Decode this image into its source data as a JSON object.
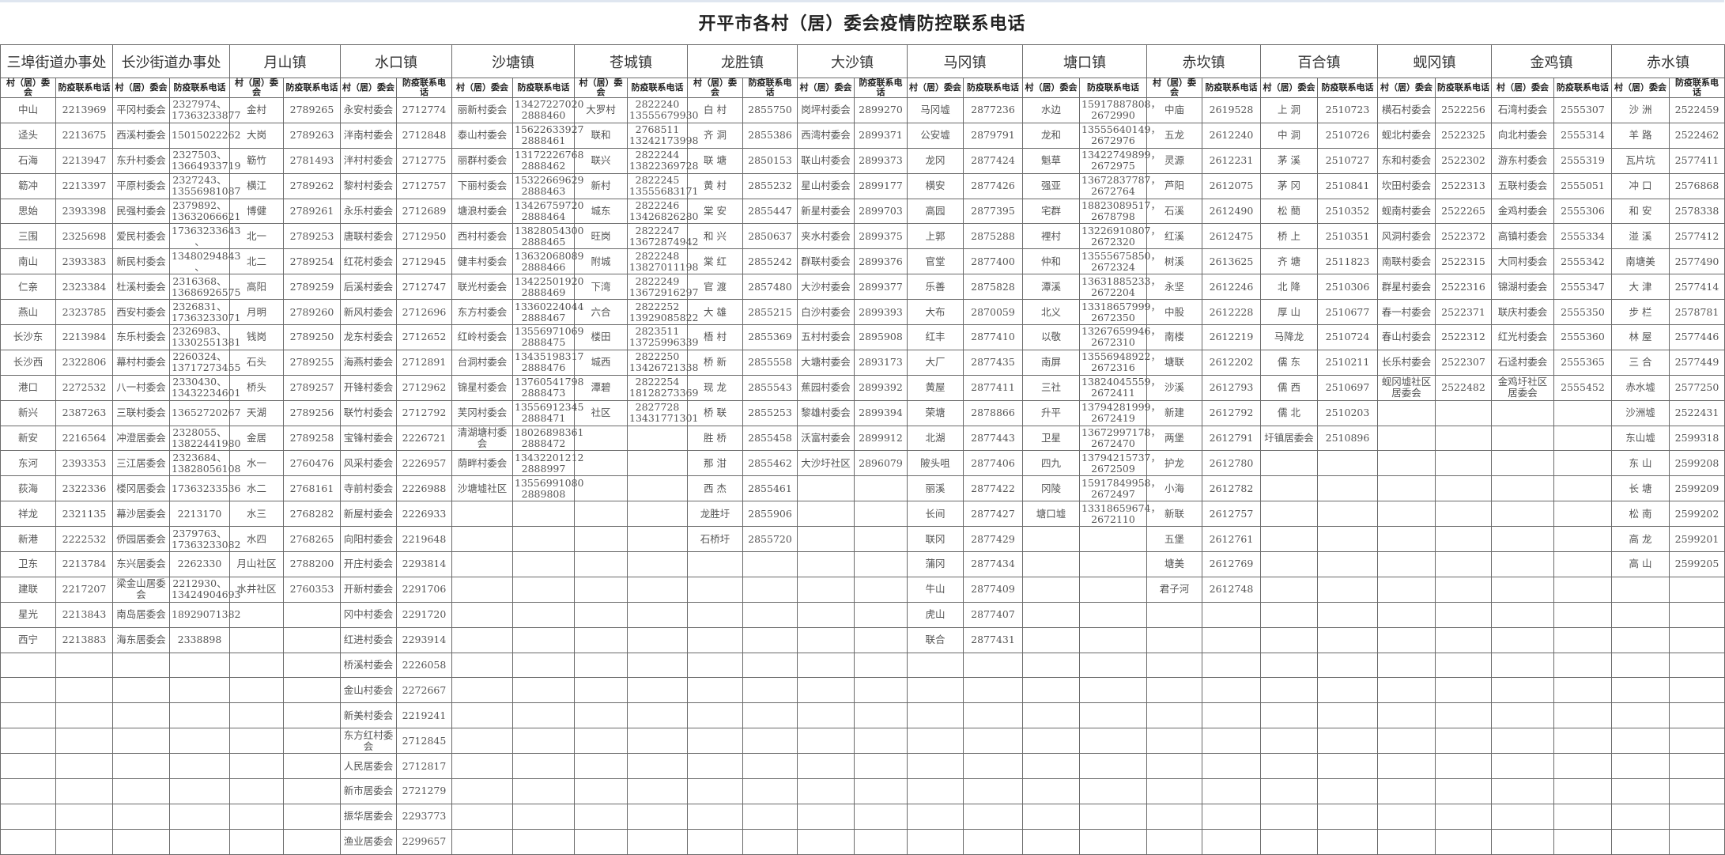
{
  "title": "开平市各村（居）委会疫情防控联系电话",
  "sub_headers": {
    "village": "村（居）委会",
    "phone": "防疫联系电话"
  },
  "towns": [
    {
      "name": "三埠街道办事处",
      "rows": [
        [
          "中山",
          "2213969"
        ],
        [
          "迳头",
          "2213675"
        ],
        [
          "石海",
          "2213947"
        ],
        [
          "簕冲",
          "2213397"
        ],
        [
          "思始",
          "2393398"
        ],
        [
          "三围",
          "2325698"
        ],
        [
          "南山",
          "2393383"
        ],
        [
          "仁亲",
          "2323384"
        ],
        [
          "燕山",
          "2323785"
        ],
        [
          "长沙东",
          "2213984"
        ],
        [
          "长沙西",
          "2322806"
        ],
        [
          "港口",
          "2272532"
        ],
        [
          "新兴",
          "2387263"
        ],
        [
          "新安",
          "2216564"
        ],
        [
          "东河",
          "2393353"
        ],
        [
          "荻海",
          "2322336"
        ],
        [
          "祥龙",
          "2321135"
        ],
        [
          "新港",
          "2222532"
        ],
        [
          "卫东",
          "2213784"
        ],
        [
          "建联",
          "2217207"
        ],
        [
          "星光",
          "2213843"
        ],
        [
          "西宁",
          "2213883"
        ]
      ]
    },
    {
      "name": "长沙街道办事处",
      "rows": [
        [
          "平冈村委会",
          "2327974、\n17363233877"
        ],
        [
          "西溪村委会",
          "15015022262"
        ],
        [
          "东升村委会",
          "2327503、\n13664933719"
        ],
        [
          "平原村委会",
          "2327243、\n13556981087"
        ],
        [
          "民强村委会",
          "2379892、\n13632066621"
        ],
        [
          "爱民村委会",
          "17363233643\n、"
        ],
        [
          "新民村委会",
          "13480294843\n、"
        ],
        [
          "杜溪村委会",
          "2316368、\n13686926575"
        ],
        [
          "西安村委会",
          "2326831、\n17363233071"
        ],
        [
          "东乐村委会",
          "2326983、\n13302551381"
        ],
        [
          "幕村村委会",
          "2260324、\n13717273455"
        ],
        [
          "八一村委会",
          "2330430、\n13432234601"
        ],
        [
          "三联村委会",
          "13652720267"
        ],
        [
          "冲澄居委会",
          "2328055、\n13822441980"
        ],
        [
          "三江居委会",
          "2323684、\n13828056108"
        ],
        [
          "楼冈居委会",
          "17363233536"
        ],
        [
          "幕沙居委会",
          "2213170"
        ],
        [
          "侨园居委会",
          "2379763、\n17363233082"
        ],
        [
          "东兴居委会",
          "2262330"
        ],
        [
          "梁金山居委会",
          "2212930、\n13424904693"
        ],
        [
          "南岛居委会",
          "18929071382"
        ],
        [
          "海东居委会",
          "2338898"
        ]
      ]
    },
    {
      "name": "月山镇",
      "rows": [
        [
          "金村",
          "2789265"
        ],
        [
          "大岗",
          "2789263"
        ],
        [
          "簕竹",
          "2781493"
        ],
        [
          "横江",
          "2789262"
        ],
        [
          "博健",
          "2789261"
        ],
        [
          "北一",
          "2789253"
        ],
        [
          "北二",
          "2789254"
        ],
        [
          "高阳",
          "2789259"
        ],
        [
          "月明",
          "2789260"
        ],
        [
          "钱岗",
          "2789250"
        ],
        [
          "石头",
          "2789255"
        ],
        [
          "桥头",
          "2789257"
        ],
        [
          "天湖",
          "2789256"
        ],
        [
          "金居",
          "2789258"
        ],
        [
          "水一",
          "2760476"
        ],
        [
          "水二",
          "2768161"
        ],
        [
          "水三",
          "2768282"
        ],
        [
          "水四",
          "2768265"
        ],
        [
          "月山社区",
          "2788200"
        ],
        [
          "水井社区",
          "2760353"
        ]
      ]
    },
    {
      "name": "水口镇",
      "rows": [
        [
          "永安村委会",
          "2712774"
        ],
        [
          "泮南村委会",
          "2712848"
        ],
        [
          "泮村村委会",
          "2712775"
        ],
        [
          "黎村村委会",
          "2712757"
        ],
        [
          "永乐村委会",
          "2712689"
        ],
        [
          "唐联村委会",
          "2712950"
        ],
        [
          "红花村委会",
          "2712945"
        ],
        [
          "后溪村委会",
          "2712747"
        ],
        [
          "新风村委会",
          "2712696"
        ],
        [
          "龙东村委会",
          "2712652"
        ],
        [
          "海燕村委会",
          "2712891"
        ],
        [
          "开锋村委会",
          "2712962"
        ],
        [
          "联竹村委会",
          "2712792"
        ],
        [
          "宝锋村委会",
          "2226721"
        ],
        [
          "风采村委会",
          "2226957"
        ],
        [
          "寺前村委会",
          "2226988"
        ],
        [
          "新屋村委会",
          "2226933"
        ],
        [
          "向阳村委会",
          "2219648"
        ],
        [
          "开庄村委会",
          "2293814"
        ],
        [
          "开新村委会",
          "2291706"
        ],
        [
          "冈中村委会",
          "2291720"
        ],
        [
          "红进村委会",
          "2293914"
        ],
        [
          "桥溪村委会",
          "2226058"
        ],
        [
          "金山村委会",
          "2272667"
        ],
        [
          "新美村委会",
          "2219241"
        ],
        [
          "东方红村委会",
          "2712845"
        ],
        [
          "人民居委会",
          "2712817"
        ],
        [
          "新市居委会",
          "2721279"
        ],
        [
          "振华居委会",
          "2293773"
        ],
        [
          "渔业居委会",
          "2299657"
        ]
      ]
    },
    {
      "name": "沙塘镇",
      "rows": [
        [
          "丽新村委会",
          "13427227020\n2888460"
        ],
        [
          "泰山村委会",
          "15622633927\n2888461"
        ],
        [
          "丽群村委会",
          "13172226768\n2888462"
        ],
        [
          "下丽村委会",
          "15322669629\n2888463"
        ],
        [
          "塘浪村委会",
          "13426759720\n2888464"
        ],
        [
          "西村村委会",
          "13828054300\n2888465"
        ],
        [
          "健丰村委会",
          "13632068089\n2888466"
        ],
        [
          "联光村委会",
          "13422501920\n2888469"
        ],
        [
          "东方村委会",
          "13360224044\n2888467"
        ],
        [
          "红岭村委会",
          "13556971069\n2888475"
        ],
        [
          "台洞村委会",
          "13435198317\n2888476"
        ],
        [
          "锦星村委会",
          "13760541798\n2888473"
        ],
        [
          "芙冈村委会",
          "13556912345\n2888471"
        ],
        [
          "清湖塘村委会",
          "18026898361\n2888472"
        ],
        [
          "荫畔村委会",
          "13432201212\n2888997"
        ],
        [
          "沙塘墟社区",
          "13556991080\n2889808"
        ]
      ]
    },
    {
      "name": "苍城镇",
      "rows": [
        [
          "大罗村",
          "2822240\n13555679930"
        ],
        [
          "联和",
          "2768511\n13242173998"
        ],
        [
          "联兴",
          "2822244\n13822369728"
        ],
        [
          "新村",
          "2822245\n13555683171"
        ],
        [
          "城东",
          "2822246\n13426826280"
        ],
        [
          "旺岗",
          "2822247\n13672874942"
        ],
        [
          "附城",
          "2822248\n13827011198"
        ],
        [
          "下湾",
          "2822249\n13672916297"
        ],
        [
          "六合",
          "2822252\n13929085822"
        ],
        [
          "楼田",
          "2823511\n13725996339"
        ],
        [
          "城西",
          "2822250\n13426721338"
        ],
        [
          "潭碧",
          "2822254\n18128273369"
        ],
        [
          "社区",
          "2827728\n13431771301"
        ]
      ]
    },
    {
      "name": "龙胜镇",
      "rows": [
        [
          "白 村",
          "2855750"
        ],
        [
          "齐 洞",
          "2855386"
        ],
        [
          "联 塘",
          "2850153"
        ],
        [
          "黄 村",
          "2855232"
        ],
        [
          "棠 安",
          "2855447"
        ],
        [
          "和 兴",
          "2850637"
        ],
        [
          "棠 红",
          "2855242"
        ],
        [
          "官 渡",
          "2857480"
        ],
        [
          "大 雄",
          "2855215"
        ],
        [
          "梧 村",
          "2855369"
        ],
        [
          "桥 新",
          "2855558"
        ],
        [
          "现 龙",
          "2855543"
        ],
        [
          "桥 联",
          "2855253"
        ],
        [
          "胜 桥",
          "2855458"
        ],
        [
          "那 泔",
          "2855462"
        ],
        [
          "西 杰",
          "2855461"
        ],
        [
          "龙胜圩",
          "2855906"
        ],
        [
          "石桥圩",
          "2855720"
        ]
      ]
    },
    {
      "name": "大沙镇",
      "rows": [
        [
          "岗坪村委会",
          "2899270"
        ],
        [
          "西湾村委会",
          "2899371"
        ],
        [
          "联山村委会",
          "2899373"
        ],
        [
          "星山村委会",
          "2899177"
        ],
        [
          "新星村委会",
          "2899703"
        ],
        [
          "夹水村委会",
          "2899375"
        ],
        [
          "群联村委会",
          "2899376"
        ],
        [
          "大沙村委会",
          "2899377"
        ],
        [
          "白沙村委会",
          "2899393"
        ],
        [
          "五村村委会",
          "2895908"
        ],
        [
          "大塘村委会",
          "2893173"
        ],
        [
          "蕉园村委会",
          "2899392"
        ],
        [
          "黎雄村委会",
          "2899394"
        ],
        [
          "沃富村委会",
          "2899912"
        ],
        [
          "大沙圩社区",
          "2896079"
        ]
      ]
    },
    {
      "name": "马冈镇",
      "rows": [
        [
          "马冈墟",
          "2877236"
        ],
        [
          "公安墟",
          "2879791"
        ],
        [
          "龙冈",
          "2877424"
        ],
        [
          "横安",
          "2877426"
        ],
        [
          "高园",
          "2877395"
        ],
        [
          "上郭",
          "2875288"
        ],
        [
          "官堂",
          "2877400"
        ],
        [
          "乐善",
          "2875828"
        ],
        [
          "大布",
          "2870059"
        ],
        [
          "红丰",
          "2877410"
        ],
        [
          "大厂",
          "2877435"
        ],
        [
          "黄屋",
          "2877411"
        ],
        [
          "荣塘",
          "2878866"
        ],
        [
          "北湖",
          "2877443"
        ],
        [
          "陂头咀",
          "2877406"
        ],
        [
          "丽溪",
          "2877422"
        ],
        [
          "长间",
          "2877427"
        ],
        [
          "联冈",
          "2877429"
        ],
        [
          "蒲冈",
          "2877434"
        ],
        [
          "牛山",
          "2877409"
        ],
        [
          "虎山",
          "2877407"
        ],
        [
          "联合",
          "2877431"
        ]
      ]
    },
    {
      "name": "塘口镇",
      "rows": [
        [
          "水边",
          "15917887808，\n2672990"
        ],
        [
          "龙和",
          "13555640149，\n2672976"
        ],
        [
          "魁草",
          "13422749899，\n2672975"
        ],
        [
          "强亚",
          "13672837787，\n2672764"
        ],
        [
          "宅群",
          "18823089517，\n2678798"
        ],
        [
          "裡村",
          "13226910807，\n2672320"
        ],
        [
          "仲和",
          "13555675850，\n2672324"
        ],
        [
          "潭溪",
          "13631885233，\n2672204"
        ],
        [
          "北义",
          "13318657999，\n2672350"
        ],
        [
          "以敬",
          "13267659946，\n2672310"
        ],
        [
          "南屏",
          "13556948922，\n2672316"
        ],
        [
          "三社",
          "13824045559，\n2672411"
        ],
        [
          "升平",
          "13794281999，\n2672419"
        ],
        [
          "卫星",
          "13672997178，\n2672470"
        ],
        [
          "四九",
          "13794215737，\n2672509"
        ],
        [
          "冈陵",
          "15917849958，\n2672497"
        ],
        [
          "塘口墟",
          "13318659674，\n2672110"
        ]
      ]
    },
    {
      "name": "赤坎镇",
      "rows": [
        [
          "中庙",
          "2619528"
        ],
        [
          "五龙",
          "2612240"
        ],
        [
          "灵源",
          "2612231"
        ],
        [
          "芦阳",
          "2612075"
        ],
        [
          "石溪",
          "2612490"
        ],
        [
          "红溪",
          "2612475"
        ],
        [
          "树溪",
          "2613625"
        ],
        [
          "永坚",
          "2612246"
        ],
        [
          "中股",
          "2612228"
        ],
        [
          "南楼",
          "2612219"
        ],
        [
          "塘联",
          "2612202"
        ],
        [
          "沙溪",
          "2612793"
        ],
        [
          "新建",
          "2612792"
        ],
        [
          "两堡",
          "2612791"
        ],
        [
          "护龙",
          "2612780"
        ],
        [
          "小海",
          "2612782"
        ],
        [
          "新联",
          "2612757"
        ],
        [
          "五堡",
          "2612761"
        ],
        [
          "塘美",
          "2612769"
        ],
        [
          "君子河",
          "2612748"
        ]
      ]
    },
    {
      "name": "百合镇",
      "rows": [
        [
          "上 洞",
          "2510723"
        ],
        [
          "中 洞",
          "2510726"
        ],
        [
          "茅 溪",
          "2510727"
        ],
        [
          "茅 冈",
          "2510841"
        ],
        [
          "松 蕳",
          "2510352"
        ],
        [
          "桥 上",
          "2510351"
        ],
        [
          "齐 塘",
          "2511823"
        ],
        [
          "北 降",
          "2510306"
        ],
        [
          "厚 山",
          "2510677"
        ],
        [
          "马降龙",
          "2510724"
        ],
        [
          "儒 东",
          "2510211"
        ],
        [
          "儒 西",
          "2510697"
        ],
        [
          "儒 北",
          "2510203"
        ],
        [
          "圩镇居委会",
          "2510896"
        ]
      ]
    },
    {
      "name": "蚬冈镇",
      "rows": [
        [
          "横石村委会",
          "2522256"
        ],
        [
          "蚬北村委会",
          "2522325"
        ],
        [
          "东和村委会",
          "2522302"
        ],
        [
          "坎田村委会",
          "2522313"
        ],
        [
          "蚬南村委会",
          "2522265"
        ],
        [
          "风洞村委会",
          "2522372"
        ],
        [
          "南联村委会",
          "2522315"
        ],
        [
          "群星村委会",
          "2522316"
        ],
        [
          "春一村委会",
          "2522371"
        ],
        [
          "春山村委会",
          "2522312"
        ],
        [
          "长乐村委会",
          "2522307"
        ],
        [
          "蚬冈墟社区居委会",
          "2522482"
        ]
      ]
    },
    {
      "name": "金鸡镇",
      "rows": [
        [
          "石湾村委会",
          "2555307"
        ],
        [
          "向北村委会",
          "2555314"
        ],
        [
          "游东村委会",
          "2555319"
        ],
        [
          "五联村委会",
          "2555051"
        ],
        [
          "金鸡村委会",
          "2555306"
        ],
        [
          "高镇村委会",
          "2555334"
        ],
        [
          "大同村委会",
          "2555342"
        ],
        [
          "锦湖村委会",
          "2555347"
        ],
        [
          "联庆村委会",
          "2555350"
        ],
        [
          "红光村委会",
          "2555360"
        ],
        [
          "石迳村委会",
          "2555365"
        ],
        [
          "金鸡圩社区居委会",
          "2555452"
        ]
      ]
    },
    {
      "name": "赤水镇",
      "rows": [
        [
          "沙 洲",
          "2522459"
        ],
        [
          "羊 路",
          "2522462"
        ],
        [
          "瓦片坑",
          "2577411"
        ],
        [
          "冲 口",
          "2576868"
        ],
        [
          "和 安",
          "2578338"
        ],
        [
          "湴 溪",
          "2577412"
        ],
        [
          "南塘美",
          "2577490"
        ],
        [
          "大 津",
          "2577414"
        ],
        [
          "步 栏",
          "2578781"
        ],
        [
          "林 屋",
          "2577446"
        ],
        [
          "三 合",
          "2577449"
        ],
        [
          "赤水墟",
          "2577250"
        ],
        [
          "沙洲墟",
          "2522431"
        ],
        [
          "东山墟",
          "2599318"
        ],
        [
          "东 山",
          "2599208"
        ],
        [
          "长 塘",
          "2599209"
        ],
        [
          "松 南",
          "2599202"
        ],
        [
          "高 龙",
          "2599201"
        ],
        [
          "高 山",
          "2599205"
        ]
      ]
    }
  ]
}
